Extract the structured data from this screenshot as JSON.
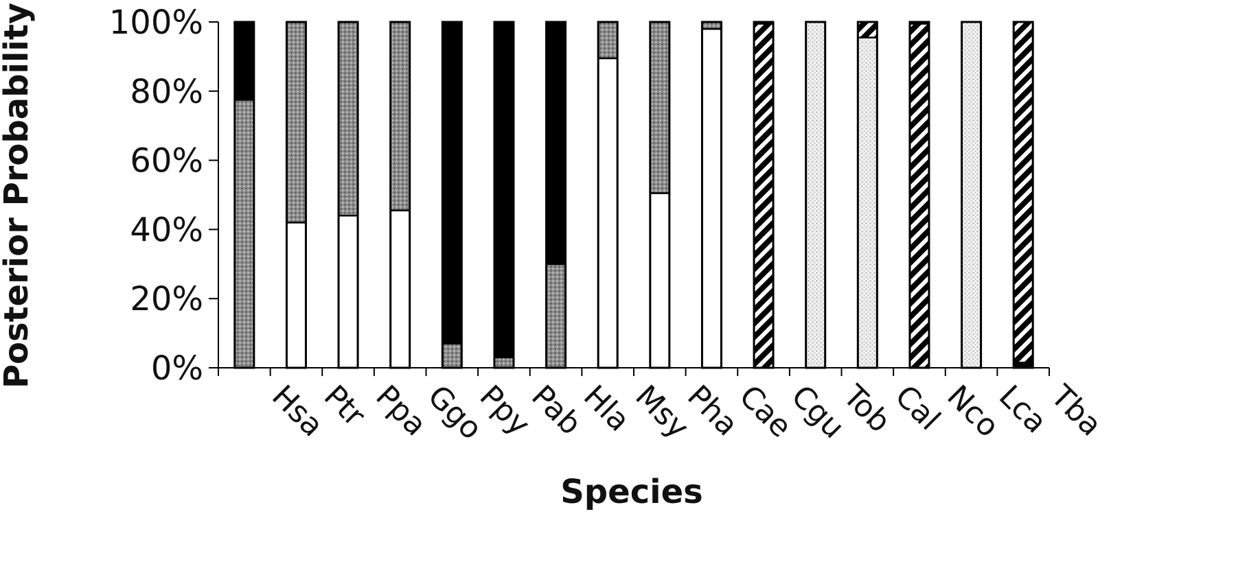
{
  "chart_data": {
    "type": "bar",
    "stacked": true,
    "title": "",
    "xlabel": "Species",
    "ylabel": "Posterior Probability",
    "ylim": [
      0,
      100
    ],
    "yticks": [
      "0%",
      "20%",
      "40%",
      "60%",
      "80%",
      "100%"
    ],
    "grid": false,
    "legend": "none",
    "categories": [
      "Hsa",
      "Ptr",
      "Ppa",
      "Ggo",
      "Ppy",
      "Pab",
      "Hla",
      "Msy",
      "Pha",
      "Cae",
      "Cgu",
      "Tob",
      "Cal",
      "Nco",
      "Lca",
      "Tba"
    ],
    "series": [
      {
        "fill": "white",
        "values": [
          0,
          42,
          44,
          45.5,
          0,
          0,
          0,
          89.5,
          50.5,
          98,
          0,
          0,
          0,
          0,
          0,
          0
        ]
      },
      {
        "fill": "gray-dotted",
        "values": [
          77.5,
          58,
          56,
          54.5,
          7,
          3,
          30,
          10.5,
          49.5,
          2,
          0,
          0,
          0,
          0,
          0,
          0
        ]
      },
      {
        "fill": "black",
        "values": [
          22.5,
          0,
          0,
          0,
          93,
          97,
          70,
          0,
          0,
          0,
          0,
          0,
          0,
          0,
          0,
          1.5
        ]
      },
      {
        "fill": "light-dotted",
        "values": [
          0,
          0,
          0,
          0,
          0,
          0,
          0,
          0,
          0,
          0,
          0,
          100,
          95.5,
          0,
          100,
          0
        ]
      },
      {
        "fill": "hatched",
        "values": [
          0,
          0,
          0,
          0,
          0,
          0,
          0,
          0,
          0,
          0,
          99.5,
          0,
          4.5,
          99.5,
          0,
          98.5
        ]
      },
      {
        "fill": "white",
        "values": [
          0,
          0,
          0,
          0,
          0,
          0,
          0,
          0,
          0,
          0,
          0.5,
          0,
          0,
          0.5,
          0,
          0
        ]
      }
    ]
  }
}
